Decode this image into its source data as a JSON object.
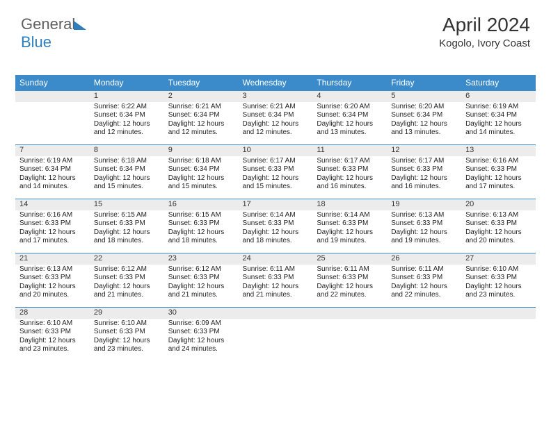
{
  "logo": {
    "part1": "General",
    "part2": "Blue"
  },
  "title": {
    "month": "April 2024",
    "location": "Kogolo, Ivory Coast"
  },
  "header_bg": "#3b8bca",
  "day_headers": [
    "Sunday",
    "Monday",
    "Tuesday",
    "Wednesday",
    "Thursday",
    "Friday",
    "Saturday"
  ],
  "weeks": [
    [
      null,
      {
        "n": "1",
        "sr": "Sunrise: 6:22 AM",
        "ss": "Sunset: 6:34 PM",
        "d1": "Daylight: 12 hours",
        "d2": "and 12 minutes."
      },
      {
        "n": "2",
        "sr": "Sunrise: 6:21 AM",
        "ss": "Sunset: 6:34 PM",
        "d1": "Daylight: 12 hours",
        "d2": "and 12 minutes."
      },
      {
        "n": "3",
        "sr": "Sunrise: 6:21 AM",
        "ss": "Sunset: 6:34 PM",
        "d1": "Daylight: 12 hours",
        "d2": "and 12 minutes."
      },
      {
        "n": "4",
        "sr": "Sunrise: 6:20 AM",
        "ss": "Sunset: 6:34 PM",
        "d1": "Daylight: 12 hours",
        "d2": "and 13 minutes."
      },
      {
        "n": "5",
        "sr": "Sunrise: 6:20 AM",
        "ss": "Sunset: 6:34 PM",
        "d1": "Daylight: 12 hours",
        "d2": "and 13 minutes."
      },
      {
        "n": "6",
        "sr": "Sunrise: 6:19 AM",
        "ss": "Sunset: 6:34 PM",
        "d1": "Daylight: 12 hours",
        "d2": "and 14 minutes."
      }
    ],
    [
      {
        "n": "7",
        "sr": "Sunrise: 6:19 AM",
        "ss": "Sunset: 6:34 PM",
        "d1": "Daylight: 12 hours",
        "d2": "and 14 minutes."
      },
      {
        "n": "8",
        "sr": "Sunrise: 6:18 AM",
        "ss": "Sunset: 6:34 PM",
        "d1": "Daylight: 12 hours",
        "d2": "and 15 minutes."
      },
      {
        "n": "9",
        "sr": "Sunrise: 6:18 AM",
        "ss": "Sunset: 6:34 PM",
        "d1": "Daylight: 12 hours",
        "d2": "and 15 minutes."
      },
      {
        "n": "10",
        "sr": "Sunrise: 6:17 AM",
        "ss": "Sunset: 6:33 PM",
        "d1": "Daylight: 12 hours",
        "d2": "and 15 minutes."
      },
      {
        "n": "11",
        "sr": "Sunrise: 6:17 AM",
        "ss": "Sunset: 6:33 PM",
        "d1": "Daylight: 12 hours",
        "d2": "and 16 minutes."
      },
      {
        "n": "12",
        "sr": "Sunrise: 6:17 AM",
        "ss": "Sunset: 6:33 PM",
        "d1": "Daylight: 12 hours",
        "d2": "and 16 minutes."
      },
      {
        "n": "13",
        "sr": "Sunrise: 6:16 AM",
        "ss": "Sunset: 6:33 PM",
        "d1": "Daylight: 12 hours",
        "d2": "and 17 minutes."
      }
    ],
    [
      {
        "n": "14",
        "sr": "Sunrise: 6:16 AM",
        "ss": "Sunset: 6:33 PM",
        "d1": "Daylight: 12 hours",
        "d2": "and 17 minutes."
      },
      {
        "n": "15",
        "sr": "Sunrise: 6:15 AM",
        "ss": "Sunset: 6:33 PM",
        "d1": "Daylight: 12 hours",
        "d2": "and 18 minutes."
      },
      {
        "n": "16",
        "sr": "Sunrise: 6:15 AM",
        "ss": "Sunset: 6:33 PM",
        "d1": "Daylight: 12 hours",
        "d2": "and 18 minutes."
      },
      {
        "n": "17",
        "sr": "Sunrise: 6:14 AM",
        "ss": "Sunset: 6:33 PM",
        "d1": "Daylight: 12 hours",
        "d2": "and 18 minutes."
      },
      {
        "n": "18",
        "sr": "Sunrise: 6:14 AM",
        "ss": "Sunset: 6:33 PM",
        "d1": "Daylight: 12 hours",
        "d2": "and 19 minutes."
      },
      {
        "n": "19",
        "sr": "Sunrise: 6:13 AM",
        "ss": "Sunset: 6:33 PM",
        "d1": "Daylight: 12 hours",
        "d2": "and 19 minutes."
      },
      {
        "n": "20",
        "sr": "Sunrise: 6:13 AM",
        "ss": "Sunset: 6:33 PM",
        "d1": "Daylight: 12 hours",
        "d2": "and 20 minutes."
      }
    ],
    [
      {
        "n": "21",
        "sr": "Sunrise: 6:13 AM",
        "ss": "Sunset: 6:33 PM",
        "d1": "Daylight: 12 hours",
        "d2": "and 20 minutes."
      },
      {
        "n": "22",
        "sr": "Sunrise: 6:12 AM",
        "ss": "Sunset: 6:33 PM",
        "d1": "Daylight: 12 hours",
        "d2": "and 21 minutes."
      },
      {
        "n": "23",
        "sr": "Sunrise: 6:12 AM",
        "ss": "Sunset: 6:33 PM",
        "d1": "Daylight: 12 hours",
        "d2": "and 21 minutes."
      },
      {
        "n": "24",
        "sr": "Sunrise: 6:11 AM",
        "ss": "Sunset: 6:33 PM",
        "d1": "Daylight: 12 hours",
        "d2": "and 21 minutes."
      },
      {
        "n": "25",
        "sr": "Sunrise: 6:11 AM",
        "ss": "Sunset: 6:33 PM",
        "d1": "Daylight: 12 hours",
        "d2": "and 22 minutes."
      },
      {
        "n": "26",
        "sr": "Sunrise: 6:11 AM",
        "ss": "Sunset: 6:33 PM",
        "d1": "Daylight: 12 hours",
        "d2": "and 22 minutes."
      },
      {
        "n": "27",
        "sr": "Sunrise: 6:10 AM",
        "ss": "Sunset: 6:33 PM",
        "d1": "Daylight: 12 hours",
        "d2": "and 23 minutes."
      }
    ],
    [
      {
        "n": "28",
        "sr": "Sunrise: 6:10 AM",
        "ss": "Sunset: 6:33 PM",
        "d1": "Daylight: 12 hours",
        "d2": "and 23 minutes."
      },
      {
        "n": "29",
        "sr": "Sunrise: 6:10 AM",
        "ss": "Sunset: 6:33 PM",
        "d1": "Daylight: 12 hours",
        "d2": "and 23 minutes."
      },
      {
        "n": "30",
        "sr": "Sunrise: 6:09 AM",
        "ss": "Sunset: 6:33 PM",
        "d1": "Daylight: 12 hours",
        "d2": "and 24 minutes."
      },
      null,
      null,
      null,
      null
    ]
  ]
}
